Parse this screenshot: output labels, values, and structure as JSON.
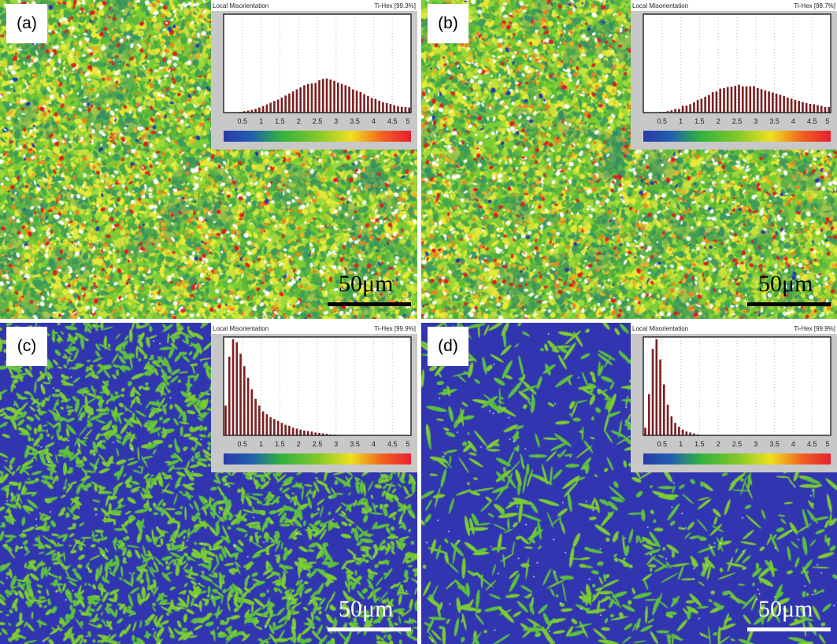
{
  "panels": [
    {
      "label": "(a)",
      "inset_title": "Local Misorientation",
      "phase": "Ti-Hex [99.3%]",
      "scale": "50μm",
      "map_style": "high",
      "scale_color": "#000000"
    },
    {
      "label": "(b)",
      "inset_title": "Local Misorientation",
      "phase": "Ti-Hex [98.7%]",
      "scale": "50μm",
      "map_style": "high",
      "scale_color": "#000000"
    },
    {
      "label": "(c)",
      "inset_title": "Local Misorientation",
      "phase": "Ti-Hex [99.9%]",
      "scale": "50μm",
      "map_style": "low",
      "scale_color": "#ffffff"
    },
    {
      "label": "(d)",
      "inset_title": "Local Misorientation",
      "phase": "Ti-Hex [99.9%]",
      "scale": "50μm",
      "map_style": "low",
      "scale_color": "#ffffff"
    }
  ],
  "colors": {
    "bar": "#7a1f1f",
    "map_blue": "#3136b0",
    "map_green": "#7ccc34",
    "map_yellow": "#e8e838",
    "map_red": "#e02020"
  },
  "chart_data": [
    {
      "type": "bar",
      "panel": "(a)",
      "xlim": [
        0,
        5
      ],
      "xticks": [
        "0.5",
        "1",
        "1.5",
        "2",
        "2.5",
        "3",
        "3.5",
        "4",
        "4.5",
        "5"
      ],
      "bin_width": 0.1,
      "grid": "vertical dotted",
      "colorbar": "blue-green-yellow-red",
      "values": [
        0,
        0,
        0,
        0,
        0.007,
        0.014,
        0.021,
        0.028,
        0.039,
        0.053,
        0.067,
        0.085,
        0.103,
        0.121,
        0.135,
        0.156,
        0.178,
        0.199,
        0.22,
        0.241,
        0.263,
        0.284,
        0.298,
        0.305,
        0.309,
        0.337,
        0.351,
        0.355,
        0.344,
        0.33,
        0.312,
        0.298,
        0.284,
        0.27,
        0.241,
        0.227,
        0.213,
        0.192,
        0.174,
        0.153,
        0.142,
        0.124,
        0.107,
        0.099,
        0.089,
        0.078,
        0.067,
        0.06,
        0.057,
        0.053
      ]
    },
    {
      "type": "bar",
      "panel": "(b)",
      "xlim": [
        0,
        5
      ],
      "xticks": [
        "0.5",
        "1",
        "1.5",
        "2",
        "2.5",
        "3",
        "3.5",
        "4",
        "4.5",
        "5"
      ],
      "bin_width": 0.1,
      "grid": "vertical dotted",
      "colorbar": "blue-green-yellow-red",
      "values": [
        0,
        0,
        0,
        0,
        0.006,
        0.009,
        0.015,
        0.023,
        0.038,
        0.038,
        0.07,
        0.073,
        0.087,
        0.107,
        0.131,
        0.145,
        0.165,
        0.183,
        0.212,
        0.22,
        0.249,
        0.255,
        0.267,
        0.27,
        0.278,
        0.29,
        0.273,
        0.273,
        0.273,
        0.276,
        0.255,
        0.244,
        0.232,
        0.22,
        0.209,
        0.197,
        0.186,
        0.174,
        0.157,
        0.145,
        0.131,
        0.122,
        0.11,
        0.099,
        0.09,
        0.087,
        0.078,
        0.07,
        0.058,
        0.058
      ]
    },
    {
      "type": "bar",
      "panel": "(c)",
      "xlim": [
        0,
        5
      ],
      "xticks": [
        "0.5",
        "1",
        "1.5",
        "2",
        "2.5",
        "3",
        "3.5",
        "4",
        "4.5",
        "5"
      ],
      "bin_width": 0.1,
      "grid": "vertical dotted",
      "colorbar": "blue-green-yellow-red",
      "values": [
        0.31,
        0.82,
        1.0,
        0.97,
        0.85,
        0.72,
        0.6,
        0.48,
        0.38,
        0.31,
        0.25,
        0.22,
        0.19,
        0.17,
        0.15,
        0.13,
        0.11,
        0.1,
        0.08,
        0.07,
        0.06,
        0.05,
        0.045,
        0.04,
        0.03,
        0.025,
        0.02,
        0.015,
        0.01,
        0.008,
        0.006,
        0.004,
        0,
        0,
        0,
        0,
        0,
        0,
        0,
        0,
        0,
        0,
        0,
        0,
        0,
        0,
        0,
        0,
        0,
        0
      ]
    },
    {
      "type": "bar",
      "panel": "(d)",
      "xlim": [
        0,
        5
      ],
      "xticks": [
        "0.5",
        "1",
        "1.5",
        "2",
        "2.5",
        "3",
        "3.5",
        "4",
        "4.5",
        "5"
      ],
      "bin_width": 0.1,
      "grid": "vertical dotted",
      "colorbar": "blue-green-yellow-red",
      "values": [
        0.08,
        0.43,
        0.9,
        1.0,
        0.79,
        0.53,
        0.32,
        0.2,
        0.13,
        0.09,
        0.06,
        0.04,
        0.03,
        0.02,
        0.01,
        0.005,
        0,
        0,
        0,
        0,
        0,
        0,
        0,
        0,
        0,
        0,
        0,
        0,
        0,
        0,
        0,
        0,
        0,
        0,
        0,
        0,
        0,
        0,
        0,
        0,
        0,
        0,
        0,
        0,
        0,
        0,
        0,
        0,
        0,
        0
      ]
    }
  ]
}
